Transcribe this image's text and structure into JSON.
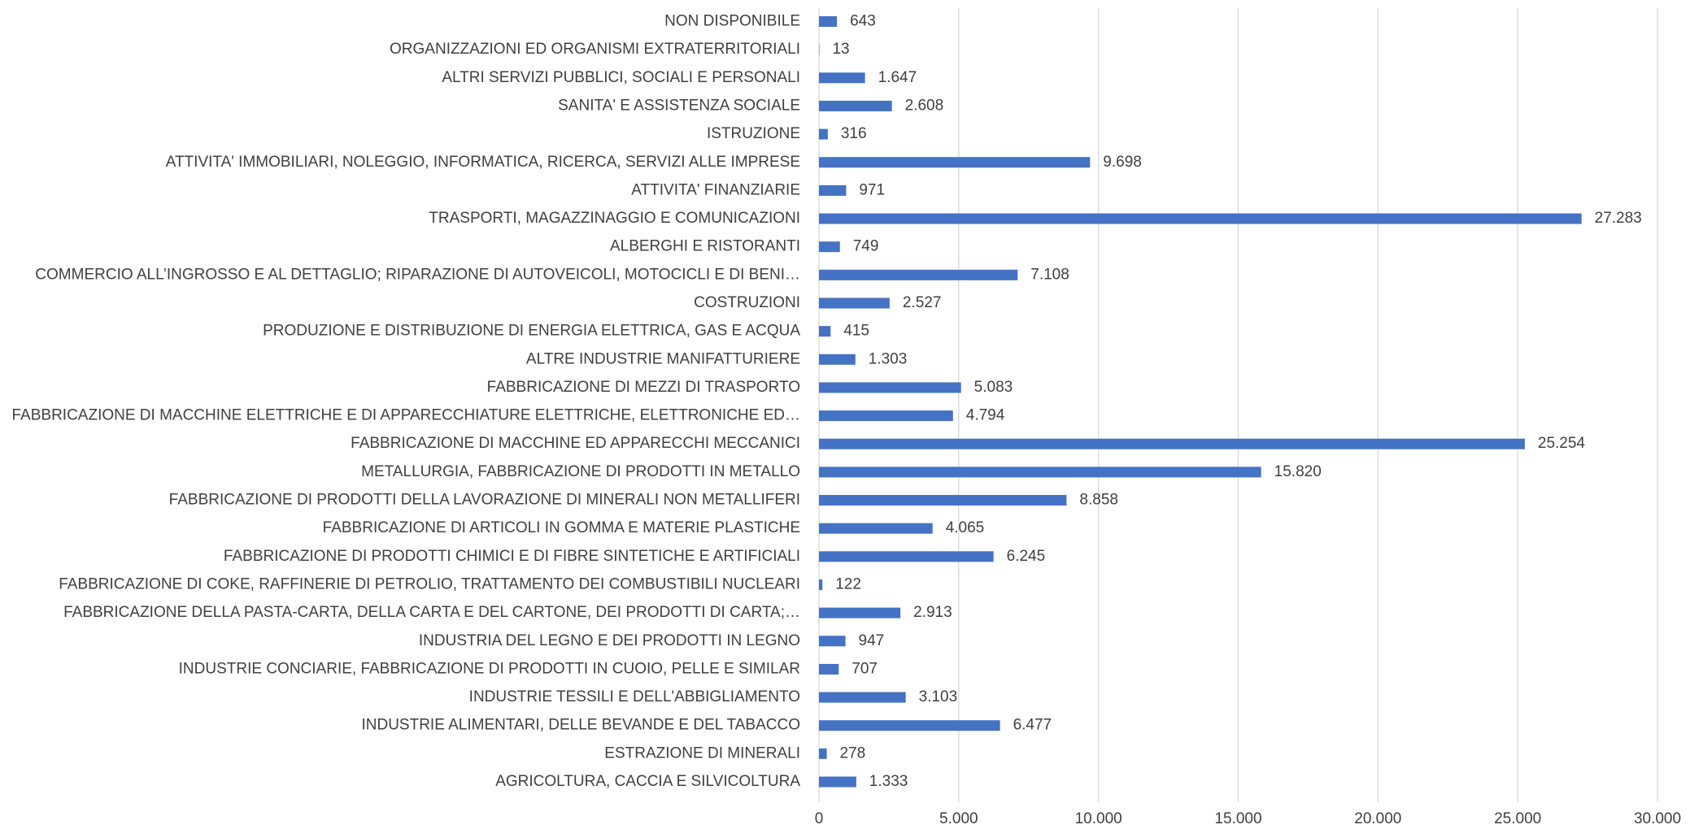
{
  "chart_data": {
    "type": "barh",
    "categories": [
      "AGRICOLTURA, CACCIA E SILVICOLTURA",
      "ESTRAZIONE DI MINERALI",
      "INDUSTRIE ALIMENTARI, DELLE BEVANDE E DEL TABACCO",
      "INDUSTRIE TESSILI E DELL'ABBIGLIAMENTO",
      "INDUSTRIE CONCIARIE, FABBRICAZIONE DI PRODOTTI IN CUOIO, PELLE E SIMILAR",
      "INDUSTRIA DEL LEGNO E DEI PRODOTTI IN LEGNO",
      "FABBRICAZIONE DELLA PASTA-CARTA, DELLA CARTA E DEL CARTONE, DEI PRODOTTI DI CARTA;…",
      "FABBRICAZIONE DI COKE, RAFFINERIE DI PETROLIO, TRATTAMENTO DEI COMBUSTIBILI NUCLEARI",
      "FABBRICAZIONE DI PRODOTTI CHIMICI E DI FIBRE SINTETICHE E ARTIFICIALI",
      "FABBRICAZIONE DI ARTICOLI IN GOMMA E MATERIE PLASTICHE",
      "FABBRICAZIONE DI PRODOTTI DELLA LAVORAZIONE DI MINERALI NON METALLIFERI",
      "METALLURGIA, FABBRICAZIONE DI PRODOTTI IN METALLO",
      "FABBRICAZIONE DI MACCHINE ED APPARECCHI MECCANICI",
      "FABBRICAZIONE DI MACCHINE ELETTRICHE E DI APPARECCHIATURE ELETTRICHE, ELETTRONICHE ED…",
      "FABBRICAZIONE DI MEZZI DI TRASPORTO",
      "ALTRE INDUSTRIE MANIFATTURIERE",
      "PRODUZIONE E DISTRIBUZIONE DI ENERGIA ELETTRICA, GAS E ACQUA",
      "COSTRUZIONI",
      "COMMERCIO ALL’INGROSSO E AL DETTAGLIO; RIPARAZIONE DI AUTOVEICOLI, MOTOCICLI E DI BENI…",
      "ALBERGHI E RISTORANTI",
      "TRASPORTI, MAGAZZINAGGIO E COMUNICAZIONI",
      "ATTIVITA' FINANZIARIE",
      "ATTIVITA' IMMOBILIARI, NOLEGGIO, INFORMATICA, RICERCA, SERVIZI ALLE IMPRESE",
      "ISTRUZIONE",
      "SANITA' E ASSISTENZA SOCIALE",
      "ALTRI SERVIZI PUBBLICI, SOCIALI E PERSONALI",
      "ORGANIZZAZIONI ED ORGANISMI EXTRATERRITORIALI",
      "NON DISPONIBILE"
    ],
    "values": [
      1333,
      278,
      6477,
      3103,
      707,
      947,
      2913,
      122,
      6245,
      4065,
      8858,
      15820,
      25254,
      4794,
      5083,
      1303,
      415,
      2527,
      7108,
      749,
      27283,
      971,
      9698,
      316,
      2608,
      1647,
      13,
      643
    ],
    "value_labels": [
      "1.333",
      "278",
      "6.477",
      "3.103",
      "707",
      "947",
      "2.913",
      "122",
      "6.245",
      "4.065",
      "8.858",
      "15.820",
      "25.254",
      "4.794",
      "5.083",
      "1.303",
      "415",
      "2.527",
      "7.108",
      "749",
      "27.283",
      "971",
      "9.698",
      "316",
      "2.608",
      "1.647",
      "13",
      "643"
    ],
    "color": "#4472c4",
    "xlim": [
      0,
      30000
    ],
    "xticks": [
      0,
      {
        "value": 5000,
        "label": "5.000"
      },
      {
        "value": 10000,
        "label": "10.000"
      },
      {
        "value": 15000,
        "label": "15.000"
      },
      {
        "value": 20000,
        "label": "20.000"
      },
      {
        "value": 25000,
        "label": "25.000"
      },
      {
        "value": 30000,
        "label": "30.000"
      }
    ],
    "grid": true
  }
}
